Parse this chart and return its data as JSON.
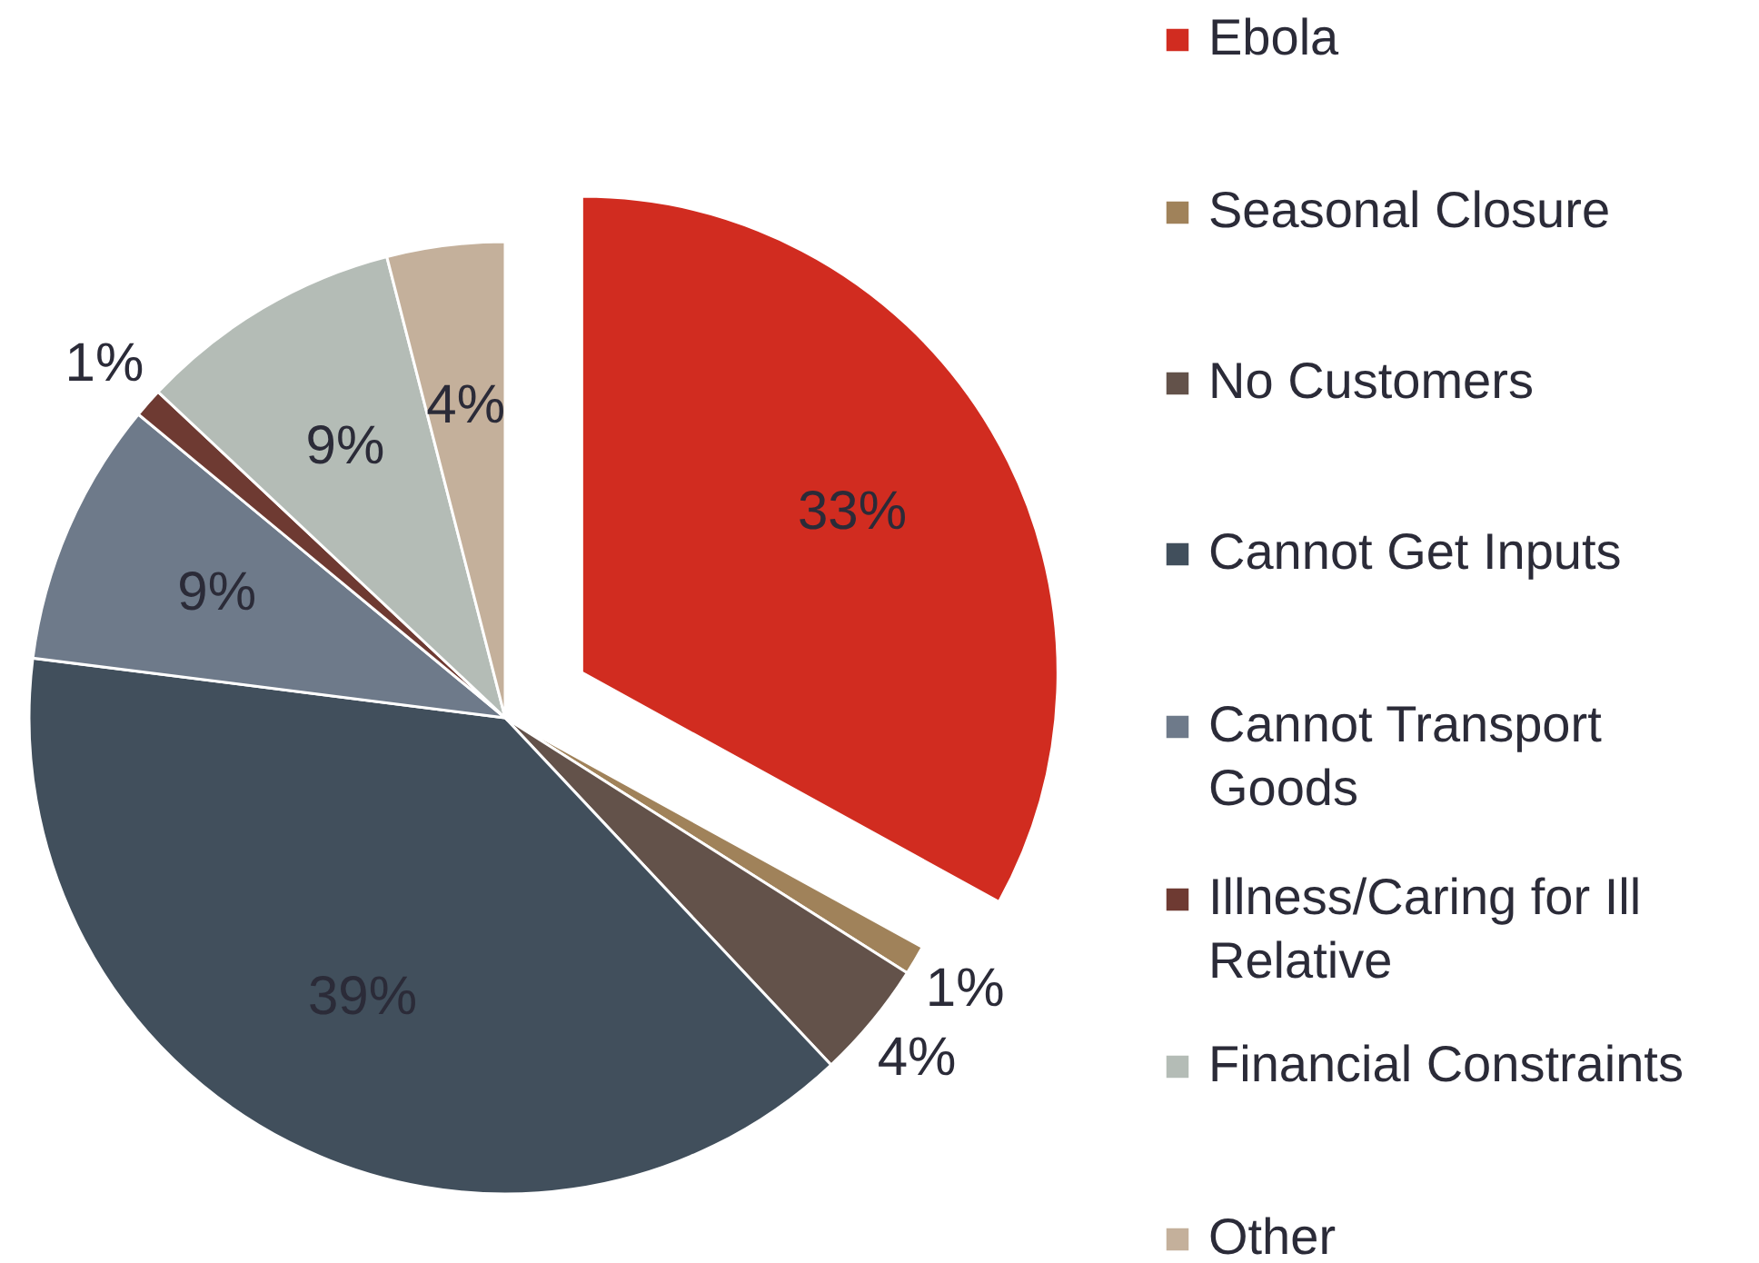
{
  "chart_data": {
    "type": "pie",
    "categories": [
      "Ebola",
      "Seasonal Closure",
      "No Customers",
      "Cannot Get Inputs",
      "Cannot Transport Goods",
      "Illness/Caring for Ill Relative",
      "Financial Constraints",
      "Other"
    ],
    "values": [
      33,
      1,
      4,
      39,
      9,
      1,
      9,
      4
    ],
    "value_labels": [
      "33%",
      "1%",
      "4%",
      "39%",
      "9%",
      "1%",
      "9%",
      "4%"
    ],
    "colors": [
      "#d12c20",
      "#a0825a",
      "#63524a",
      "#414f5c",
      "#6e7a8a",
      "#6e3a32",
      "#b4bcb6",
      "#c4b09b"
    ],
    "legend": "right"
  }
}
